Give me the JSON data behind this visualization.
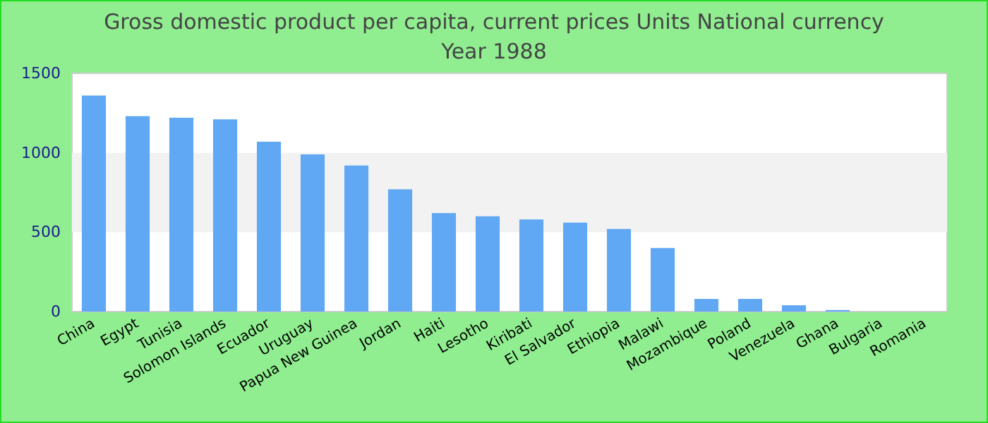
{
  "chart_data": {
    "type": "bar",
    "title": "Gross domestic product per capita, current prices Units National currency",
    "subtitle": "Year 1988",
    "categories": [
      "China",
      "Egypt",
      "Tunisia",
      "Solomon Islands",
      "Ecuador",
      "Uruguay",
      "Papua New Guinea",
      "Jordan",
      "Haiti",
      "Lesotho",
      "Kiribati",
      "El Salvador",
      "Ethiopia",
      "Malawi",
      "Mozambique",
      "Poland",
      "Venezuela",
      "Ghana",
      "Bulgaria",
      "Romania"
    ],
    "values": [
      1360,
      1230,
      1220,
      1210,
      1070,
      990,
      920,
      770,
      620,
      600,
      580,
      560,
      520,
      400,
      80,
      80,
      40,
      10,
      0,
      0
    ],
    "color": "#60a8f4",
    "ylim": [
      0,
      1500
    ],
    "yticks": [
      0,
      500,
      1000,
      1500
    ],
    "bands": [
      {
        "axis": "y",
        "from": 500,
        "to": 1000,
        "color": "#f2f2f2"
      }
    ],
    "grid": false
  }
}
